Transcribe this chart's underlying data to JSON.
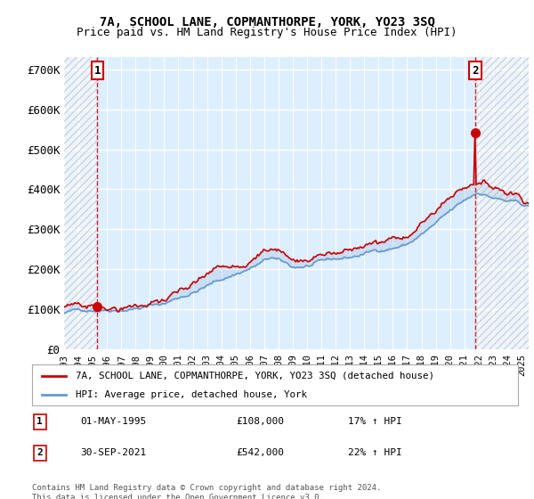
{
  "title_line1": "7A, SCHOOL LANE, COPMANTHORPE, YORK, YO23 3SQ",
  "title_line2": "Price paid vs. HM Land Registry's House Price Index (HPI)",
  "ylabel_ticks": [
    "£0",
    "£100K",
    "£200K",
    "£300K",
    "£400K",
    "£500K",
    "£600K",
    "£700K"
  ],
  "ylim": [
    0,
    730000
  ],
  "xlim_start": 1993.0,
  "xlim_end": 2025.5,
  "sale1_x": 1995.33,
  "sale1_y": 108000,
  "sale2_x": 2021.75,
  "sale2_y": 542000,
  "legend_line1": "7A, SCHOOL LANE, COPMANTHORPE, YORK, YO23 3SQ (detached house)",
  "legend_line2": "HPI: Average price, detached house, York",
  "annotation1_label": "1",
  "annotation1_date": "01-MAY-1995",
  "annotation1_price": "£108,000",
  "annotation1_hpi": "17% ↑ HPI",
  "annotation2_label": "2",
  "annotation2_date": "30-SEP-2021",
  "annotation2_price": "£542,000",
  "annotation2_hpi": "22% ↑ HPI",
  "footer": "Contains HM Land Registry data © Crown copyright and database right 2024.\nThis data is licensed under the Open Government Licence v3.0.",
  "hpi_color": "#6699cc",
  "sold_color": "#cc0000",
  "plot_bg": "#ddeeff"
}
